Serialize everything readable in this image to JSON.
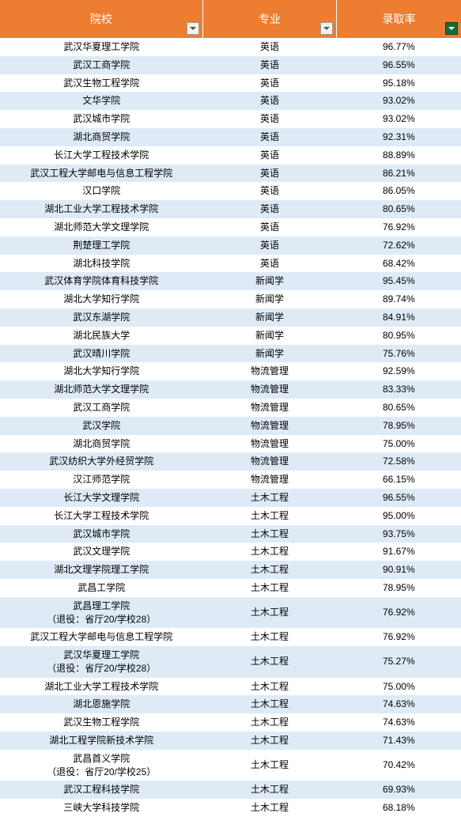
{
  "header": {
    "bg_color": "#ed7d31",
    "text_color": "#ffffff",
    "columns": [
      {
        "label": "院校",
        "control": "filter"
      },
      {
        "label": "专业",
        "control": "filter"
      },
      {
        "label": "录取率",
        "control": "sort"
      }
    ],
    "filter_btn_bg": "#f1f1f1",
    "filter_arrow_color": "#555555",
    "sort_btn_bg": "#1a6b3a",
    "sort_arrow_color": "#ffffff"
  },
  "row_colors": {
    "odd": "#deebf7",
    "even": "#ffffff"
  },
  "font_size_header": 14,
  "font_size_body": 12,
  "rows": [
    {
      "school": "武汉华夏理工学院",
      "major": "英语",
      "rate": "96.77%"
    },
    {
      "school": "武汉工商学院",
      "major": "英语",
      "rate": "96.55%"
    },
    {
      "school": "武汉生物工程学院",
      "major": "英语",
      "rate": "95.18%"
    },
    {
      "school": "文华学院",
      "major": "英语",
      "rate": "93.02%"
    },
    {
      "school": "武汉城市学院",
      "major": "英语",
      "rate": "93.02%"
    },
    {
      "school": "湖北商贸学院",
      "major": "英语",
      "rate": "92.31%"
    },
    {
      "school": "长江大学工程技术学院",
      "major": "英语",
      "rate": "88.89%"
    },
    {
      "school": "武汉工程大学邮电与信息工程学院",
      "major": "英语",
      "rate": "86.21%"
    },
    {
      "school": "汉口学院",
      "major": "英语",
      "rate": "86.05%"
    },
    {
      "school": "湖北工业大学工程技术学院",
      "major": "英语",
      "rate": "80.65%"
    },
    {
      "school": "湖北师范大学文理学院",
      "major": "英语",
      "rate": "76.92%"
    },
    {
      "school": "荆楚理工学院",
      "major": "英语",
      "rate": "72.62%"
    },
    {
      "school": "湖北科技学院",
      "major": "英语",
      "rate": "68.42%"
    },
    {
      "school": "武汉体育学院体育科技学院",
      "major": "新闻学",
      "rate": "95.45%"
    },
    {
      "school": "湖北大学知行学院",
      "major": "新闻学",
      "rate": "89.74%"
    },
    {
      "school": "武汉东湖学院",
      "major": "新闻学",
      "rate": "84.91%"
    },
    {
      "school": "湖北民族大学",
      "major": "新闻学",
      "rate": "80.95%"
    },
    {
      "school": "武汉晴川学院",
      "major": "新闻学",
      "rate": "75.76%"
    },
    {
      "school": "湖北大学知行学院",
      "major": "物流管理",
      "rate": "92.59%"
    },
    {
      "school": "湖北师范大学文理学院",
      "major": "物流管理",
      "rate": "83.33%"
    },
    {
      "school": "武汉工商学院",
      "major": "物流管理",
      "rate": "80.65%"
    },
    {
      "school": "武汉学院",
      "major": "物流管理",
      "rate": "78.95%"
    },
    {
      "school": "湖北商贸学院",
      "major": "物流管理",
      "rate": "75.00%"
    },
    {
      "school": "武汉纺织大学外经贸学院",
      "major": "物流管理",
      "rate": "72.58%"
    },
    {
      "school": "汉江师范学院",
      "major": "物流管理",
      "rate": "66.15%"
    },
    {
      "school": "长江大学文理学院",
      "major": "土木工程",
      "rate": "96.55%"
    },
    {
      "school": "长江大学工程技术学院",
      "major": "土木工程",
      "rate": "95.00%"
    },
    {
      "school": "武汉城市学院",
      "major": "土木工程",
      "rate": "93.75%"
    },
    {
      "school": "武汉文理学院",
      "major": "土木工程",
      "rate": "91.67%"
    },
    {
      "school": "湖北文理学院理工学院",
      "major": "土木工程",
      "rate": "90.91%"
    },
    {
      "school": "武昌工学院",
      "major": "土木工程",
      "rate": "78.95%"
    },
    {
      "school": "武昌理工学院\n（退役：省厅20/学校28）",
      "major": "土木工程",
      "rate": "76.92%"
    },
    {
      "school": "武汉工程大学邮电与信息工程学院",
      "major": "土木工程",
      "rate": "76.92%"
    },
    {
      "school": "武汉华夏理工学院\n（退役：省厅20/学校28）",
      "major": "土木工程",
      "rate": "75.27%"
    },
    {
      "school": "湖北工业大学工程技术学院",
      "major": "土木工程",
      "rate": "75.00%"
    },
    {
      "school": "湖北恩施学院",
      "major": "土木工程",
      "rate": "74.63%"
    },
    {
      "school": "武汉生物工程学院",
      "major": "土木工程",
      "rate": "74.63%"
    },
    {
      "school": "湖北工程学院新技术学院",
      "major": "土木工程",
      "rate": "71.43%"
    },
    {
      "school": "武昌首义学院\n（退役：省厅20/学校25）",
      "major": "土木工程",
      "rate": "70.42%"
    },
    {
      "school": "武汉工程科技学院",
      "major": "土木工程",
      "rate": "69.93%"
    },
    {
      "school": "三峡大学科技学院",
      "major": "土木工程",
      "rate": "68.18%"
    }
  ]
}
